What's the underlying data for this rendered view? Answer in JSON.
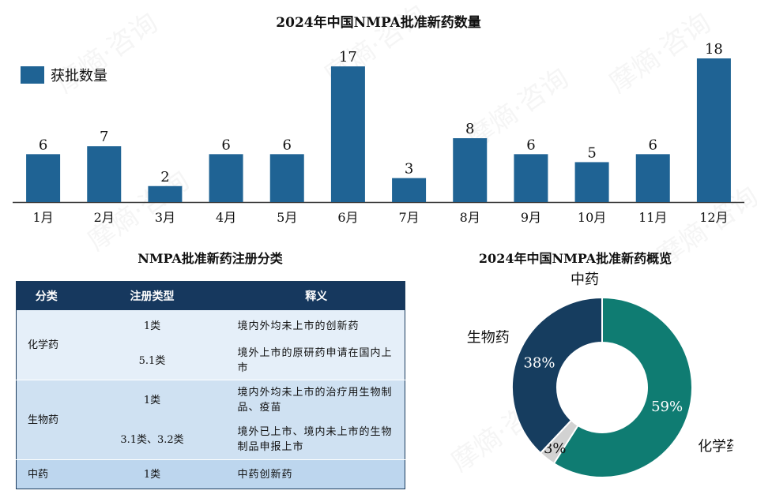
{
  "chart_data": [
    {
      "type": "bar",
      "title": "2024年中国NMPA批准新药数量",
      "categories": [
        "1月",
        "2月",
        "3月",
        "4月",
        "5月",
        "6月",
        "7月",
        "8月",
        "9月",
        "10月",
        "11月",
        "12月"
      ],
      "series": [
        {
          "name": "获批数量",
          "values": [
            6,
            7,
            2,
            6,
            6,
            17,
            3,
            8,
            6,
            5,
            6,
            18
          ],
          "color": "#1f6394"
        }
      ],
      "legend": "top-left",
      "grid": false
    },
    {
      "type": "pie",
      "variant": "donut",
      "title": "2024年中国NMPA批准新药概览",
      "slices": [
        {
          "label": "化学药",
          "value": 59,
          "display": "59%",
          "color": "#0f7c72"
        },
        {
          "label": "中药",
          "value": 3,
          "display": "3%",
          "color": "#d2d2d2"
        },
        {
          "label": "生物药",
          "value": 38,
          "display": "38%",
          "color": "#163d5f"
        }
      ]
    }
  ],
  "table": {
    "title": "NMPA批准新药注册分类",
    "headers": [
      "分类",
      "注册类型",
      "释义"
    ],
    "rows": {
      "chem": {
        "category": "化学药",
        "items": [
          {
            "type": "1类",
            "desc": "境内外均未上市的创新药"
          },
          {
            "type": "5.1类",
            "desc": "境外上市的原研药申请在国内上市"
          }
        ]
      },
      "bio": {
        "category": "生物药",
        "items": [
          {
            "type": "1类",
            "desc": "境内外均未上市的治疗用生物制品、疫苗"
          },
          {
            "type": "3.1类、3.2类",
            "desc": "境外已上市、境内未上市的生物制品申报上市"
          }
        ]
      },
      "tcm": {
        "category": "中药",
        "items": [
          {
            "type": "1类",
            "desc": "中药创新药"
          }
        ]
      }
    }
  },
  "watermark": "摩熵·咨询"
}
